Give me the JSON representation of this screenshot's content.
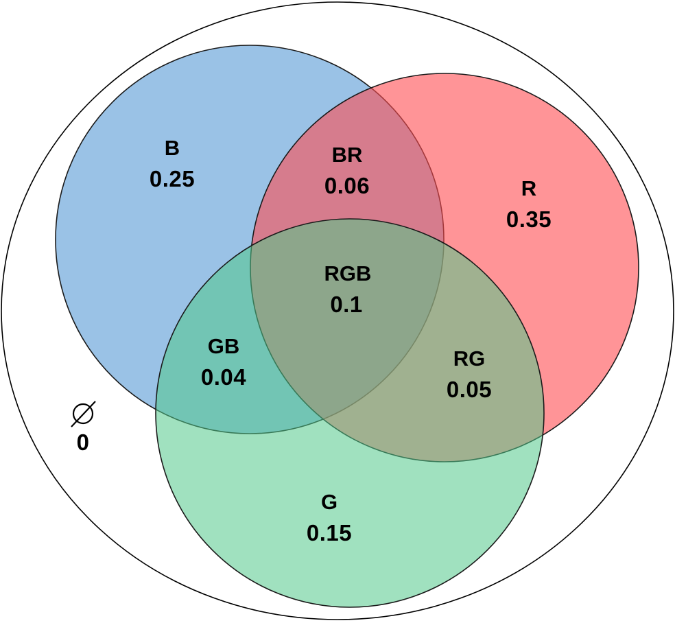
{
  "colors": {
    "blue": "#6fa8dc",
    "red": "#ff4d52",
    "green": "#52c98b",
    "universe_fill": "#ffffff",
    "stroke": "#000000"
  },
  "regions": {
    "B": {
      "label": "B",
      "value": "0.25"
    },
    "R": {
      "label": "R",
      "value": "0.35"
    },
    "G": {
      "label": "G",
      "value": "0.15"
    },
    "BR": {
      "label": "BR",
      "value": "0.06"
    },
    "GB": {
      "label": "GB",
      "value": "0.04"
    },
    "RG": {
      "label": "RG",
      "value": "0.05"
    },
    "RGB": {
      "label": "RGB",
      "value": "0.1"
    }
  },
  "empty_set": {
    "symbol": "∅",
    "value": "0"
  }
}
